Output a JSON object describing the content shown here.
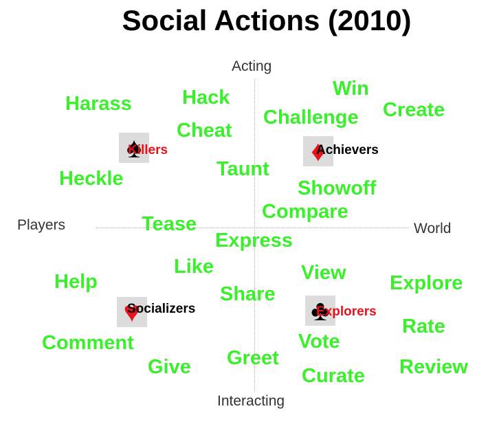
{
  "title": "Social Actions (2010)",
  "axes": {
    "top": "Acting",
    "bottom": "Interacting",
    "left": "Players",
    "right": "World"
  },
  "categories": [
    {
      "id": "killers",
      "label": "Killers",
      "suit": "♠",
      "icon": "spade-icon",
      "label_color": "#e8121b",
      "suit_color": "#000000"
    },
    {
      "id": "achievers",
      "label": "Achievers",
      "suit": "♦",
      "icon": "diamond-icon",
      "label_color": "#000000",
      "suit_color": "#e8121b"
    },
    {
      "id": "socializers",
      "label": "Socializers",
      "suit": "♥",
      "icon": "heart-icon",
      "label_color": "#000000",
      "suit_color": "#e8121b"
    },
    {
      "id": "explorers",
      "label": "Explorers",
      "suit": "♣",
      "icon": "club-icon",
      "label_color": "#e8121b",
      "suit_color": "#000000"
    }
  ],
  "actions": [
    "Win",
    "Hack",
    "Harass",
    "Create",
    "Challenge",
    "Cheat",
    "Taunt",
    "Heckle",
    "Showoff",
    "Compare",
    "Tease",
    "Express",
    "Like",
    "View",
    "Help",
    "Explore",
    "Share",
    "Rate",
    "Comment",
    "Vote",
    "Greet",
    "Give",
    "Review",
    "Curate"
  ],
  "colors": {
    "action": "#39f02a",
    "red": "#e8121b"
  }
}
